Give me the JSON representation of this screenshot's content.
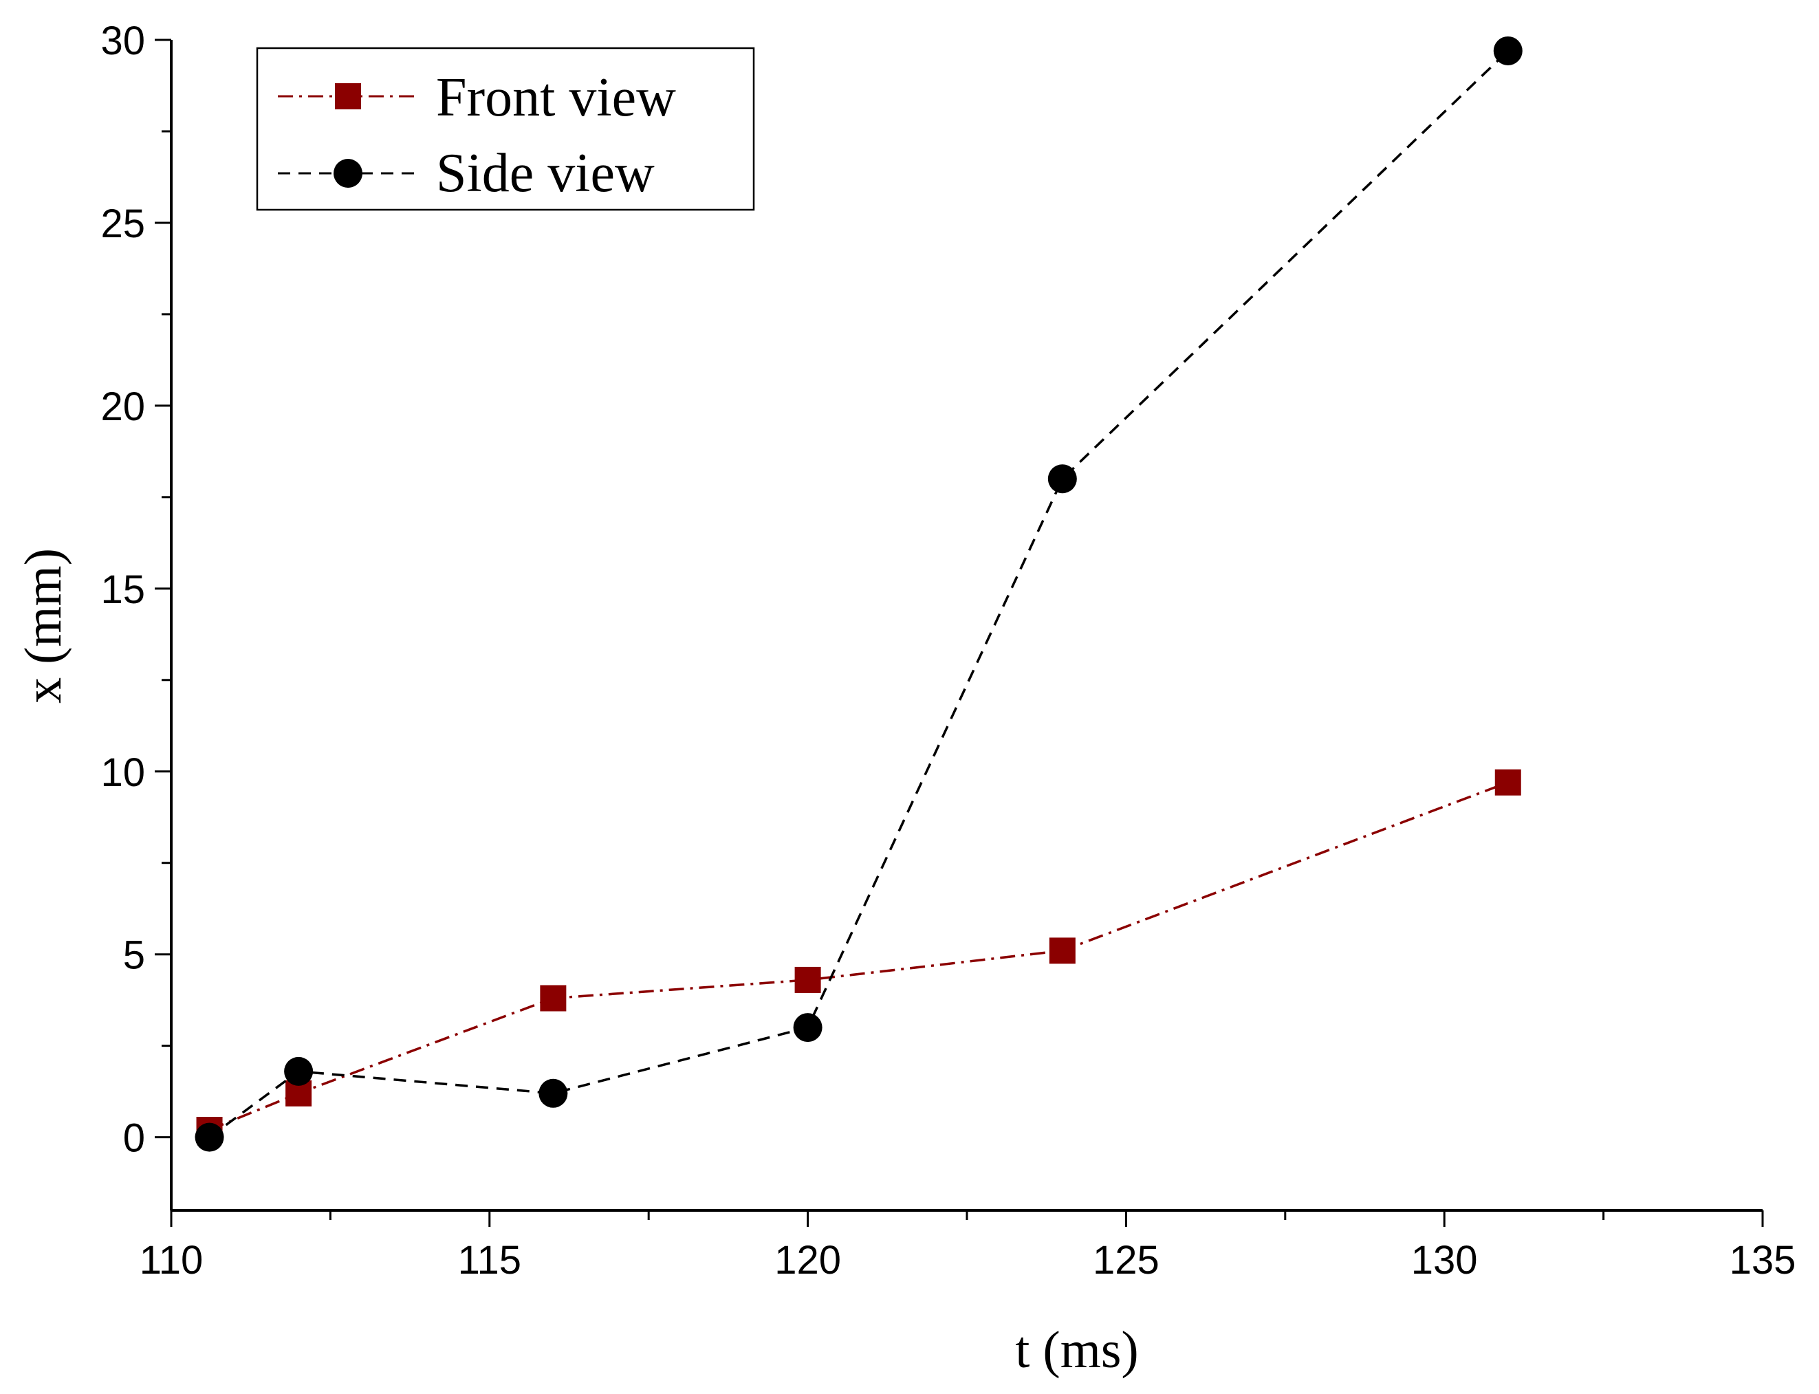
{
  "chart_data": {
    "type": "line",
    "title": "",
    "xlabel": "t (ms)",
    "ylabel": "x (mm)",
    "xlim": [
      110,
      135
    ],
    "ylim": [
      -2,
      30
    ],
    "xticks": [
      110,
      115,
      120,
      125,
      130,
      135
    ],
    "yticks": [
      0,
      5,
      10,
      15,
      20,
      25,
      30
    ],
    "x_tick_labels": [
      "110",
      "115",
      "120",
      "125",
      "130",
      "135"
    ],
    "y_tick_labels": [
      "0",
      "5",
      "10",
      "15",
      "20",
      "25",
      "30"
    ],
    "grid": false,
    "legend_position": "top-left",
    "series": [
      {
        "name": "Front view",
        "color": "#8b0000",
        "marker": "square",
        "line_style": "dash-dot",
        "x": [
          110.6,
          112,
          116,
          120,
          124,
          131
        ],
        "y": [
          0.2,
          1.2,
          3.8,
          4.3,
          5.1,
          9.7
        ]
      },
      {
        "name": "Side view",
        "color": "#000000",
        "marker": "circle",
        "line_style": "dashed",
        "x": [
          110.6,
          112,
          116,
          120,
          124,
          131
        ],
        "y": [
          0.0,
          1.8,
          1.2,
          3.0,
          18.0,
          29.7
        ]
      }
    ]
  }
}
